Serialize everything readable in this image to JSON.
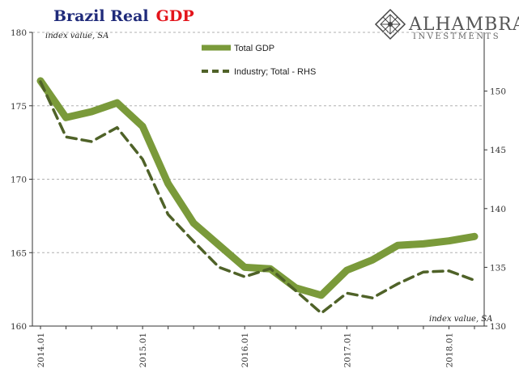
{
  "header": {
    "title_part1": "Brazil Real",
    "title_part2": "GDP",
    "title_color1": "#1f2a7a",
    "title_color2": "#e3141b"
  },
  "logo": {
    "name": "ALHAMBRA",
    "sub": "INVESTMENTS",
    "icon": "diamond-lattice-icon"
  },
  "chart_data": {
    "type": "line",
    "x": [
      "2014.01",
      "2014.04",
      "2014.07",
      "2014.10",
      "2015.01",
      "2015.04",
      "2015.07",
      "2015.10",
      "2016.01",
      "2016.04",
      "2016.07",
      "2016.10",
      "2017.01",
      "2017.04",
      "2017.07",
      "2017.10",
      "2018.01",
      "2018.04"
    ],
    "x_tick_labels": [
      "2014.01",
      "2015.01",
      "2016.01",
      "2017.01",
      "2018.01"
    ],
    "left_axis": {
      "note": "index value, SA",
      "ylim": [
        160,
        180
      ],
      "ticks": [
        160,
        165,
        170,
        175,
        180
      ]
    },
    "right_axis": {
      "note": "index value, SA",
      "ylim": [
        130,
        155
      ],
      "ticks": [
        130,
        135,
        140,
        145,
        150
      ]
    },
    "grid": "horizontal dashed",
    "legend_position": "top-center",
    "series": [
      {
        "name": "Total GDP",
        "axis": "left",
        "style": "solid-thick",
        "color": "#7a9a3a",
        "values": [
          176.7,
          174.2,
          174.6,
          175.2,
          173.6,
          169.7,
          167.0,
          165.5,
          164.0,
          163.9,
          162.6,
          162.1,
          163.8,
          164.5,
          165.5,
          165.6,
          165.8,
          166.1
        ]
      },
      {
        "name": "Industry; Total - RHS",
        "axis": "right",
        "style": "dashed",
        "color": "#4f6228",
        "values": [
          150.8,
          146.1,
          145.7,
          146.9,
          144.2,
          139.5,
          137.2,
          135.0,
          134.2,
          134.9,
          133.0,
          131.1,
          132.8,
          132.4,
          133.6,
          134.6,
          134.7,
          133.9
        ]
      }
    ]
  }
}
